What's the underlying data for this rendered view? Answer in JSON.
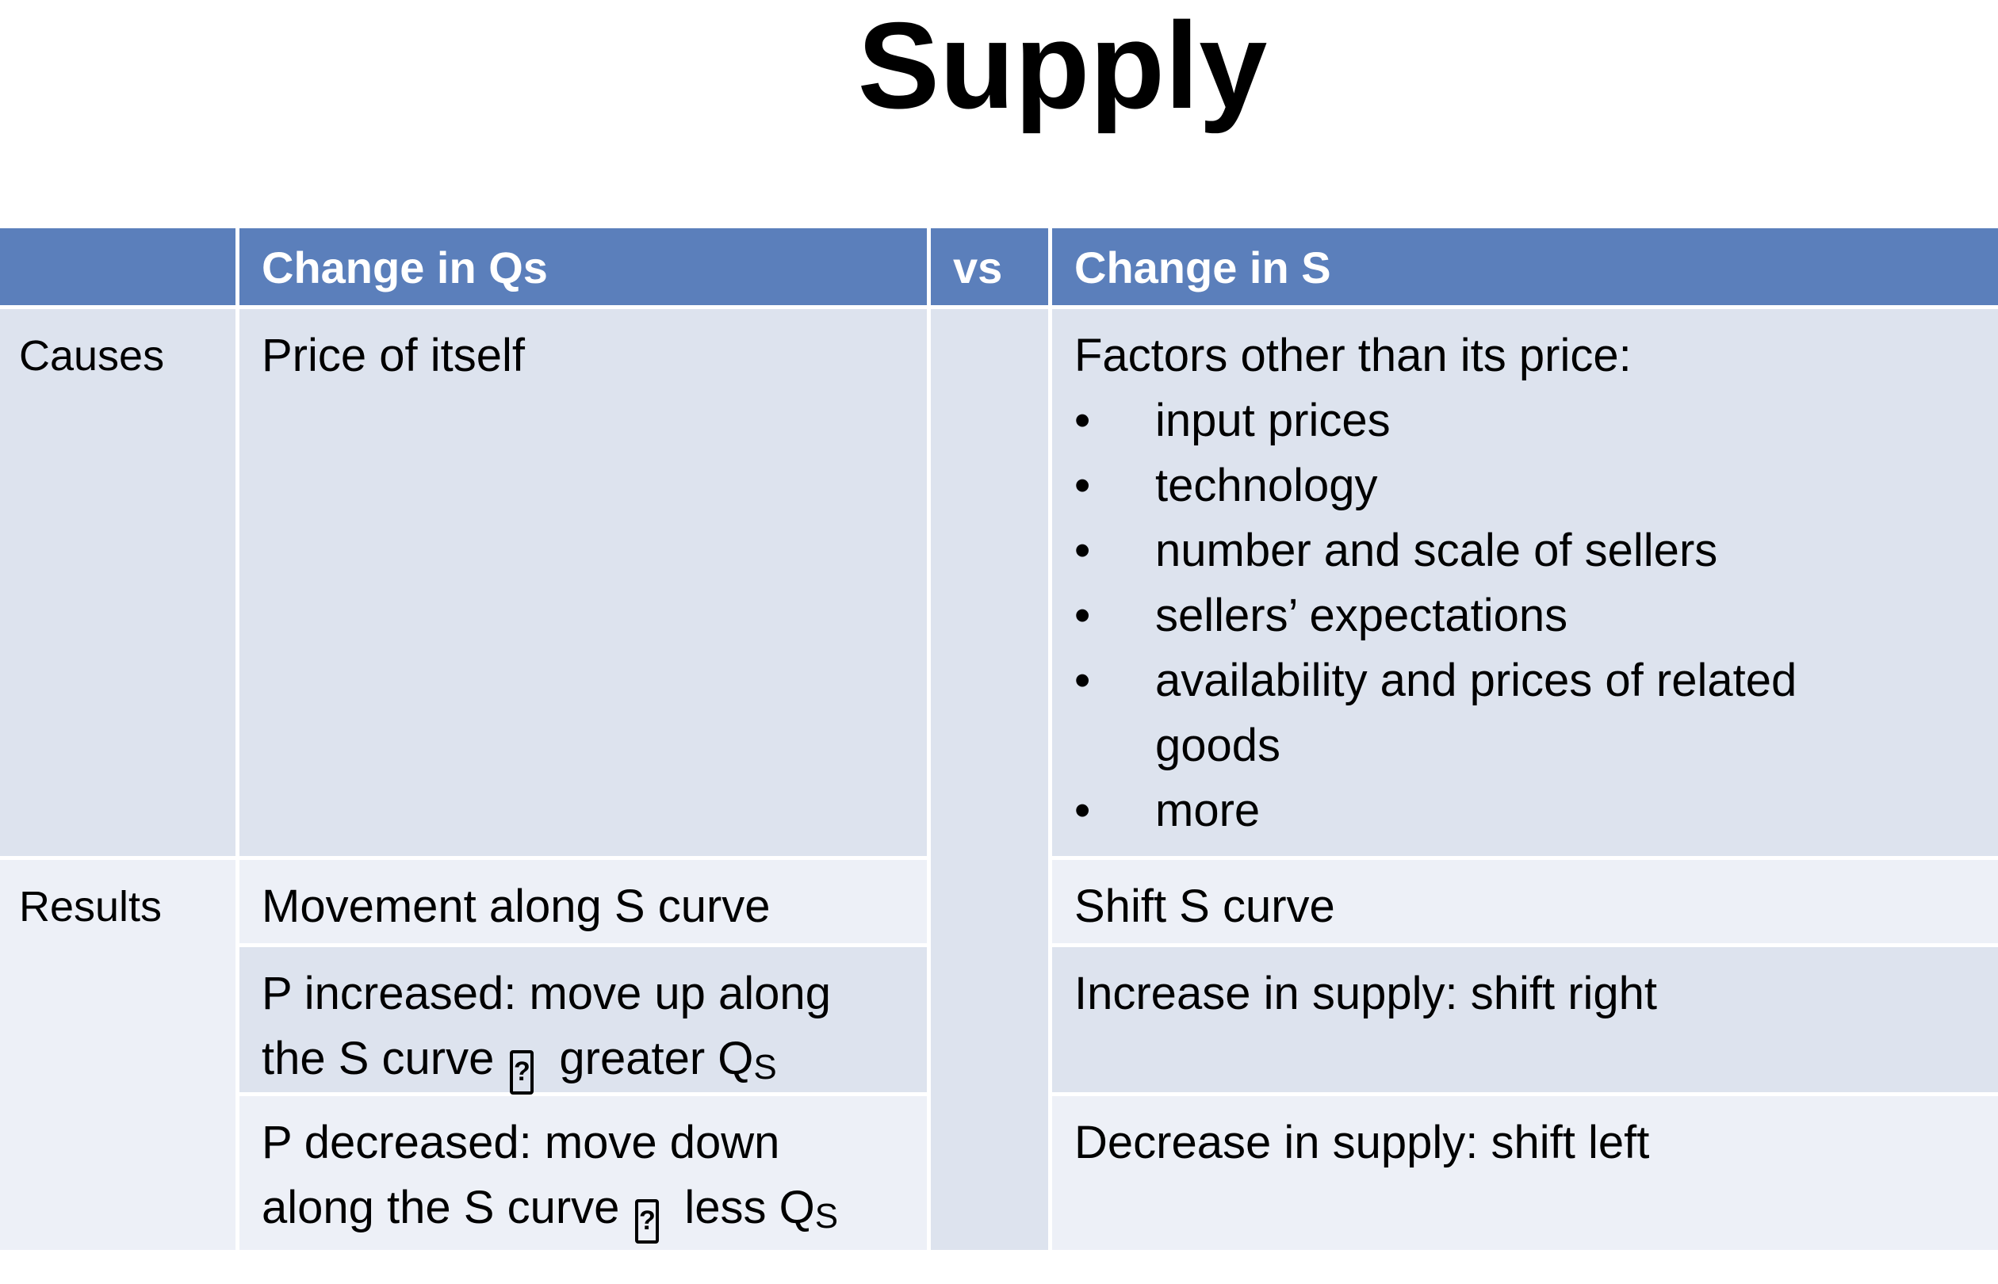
{
  "title": "Supply",
  "header": {
    "col_label": "",
    "change_qs": "Change in Qs",
    "vs": "vs",
    "change_s": "Change in S"
  },
  "rows": {
    "causes_label": "Causes",
    "results_label": "Results"
  },
  "causes": {
    "qs": "Price of itself",
    "s_intro": "Factors other than its price:",
    "s_bullets": [
      "input prices",
      "technology",
      "number and scale of sellers",
      "sellers’ expectations",
      "availability and prices of related goods",
      "more"
    ]
  },
  "results": {
    "qs_1": "Movement along S curve",
    "qs_2_text": "P increased: move up along the S curve",
    "qs_2_tail": "greater Q",
    "qs_3_text": "P decreased: move down along the S curve",
    "qs_3_tail": "less Q",
    "subscript": "S",
    "s_1": "Shift S curve",
    "s_2": "Increase in supply: shift right",
    "s_3": "Decrease in supply: shift left"
  },
  "bullet_glyph": "•",
  "icons": {
    "arrow": "arrow-icon"
  },
  "colors": {
    "header": "#5b7fbb",
    "dark_row": "#dde3ee",
    "light_row": "#edf0f7"
  }
}
